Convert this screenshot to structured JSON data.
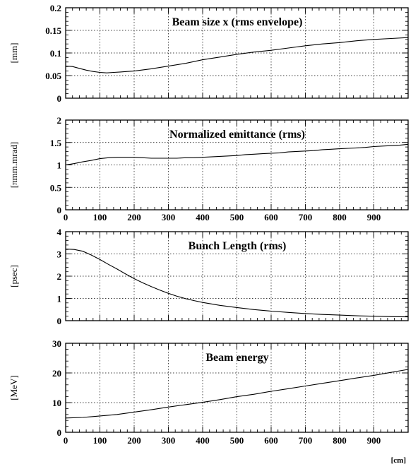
{
  "figure": {
    "x_unit_label": "[cm]"
  },
  "chart_data": [
    {
      "type": "line",
      "title": "Beam size x (rms envelope)",
      "ylabel": "[mm]",
      "xlabel": "",
      "xlim": [
        0,
        1000
      ],
      "ylim": [
        0,
        0.2
      ],
      "grid": true,
      "x_tick_values": [],
      "x_tick_labels": [],
      "y_tick_values": [
        0,
        0.05,
        0.1,
        0.15,
        0.2
      ],
      "y_tick_labels": [
        "0",
        "0.05",
        "0.1",
        "0.15",
        "0.2"
      ],
      "series": [
        {
          "x": [
            0,
            20,
            40,
            60,
            80,
            100,
            120,
            140,
            160,
            180,
            200,
            220,
            250,
            300,
            350,
            400,
            450,
            500,
            550,
            600,
            650,
            700,
            750,
            800,
            850,
            900,
            950,
            1000
          ],
          "y": [
            0.071,
            0.07,
            0.066,
            0.062,
            0.059,
            0.057,
            0.056,
            0.057,
            0.058,
            0.059,
            0.06,
            0.062,
            0.065,
            0.071,
            0.077,
            0.085,
            0.091,
            0.097,
            0.102,
            0.106,
            0.111,
            0.116,
            0.12,
            0.123,
            0.127,
            0.13,
            0.132,
            0.134
          ]
        }
      ]
    },
    {
      "type": "line",
      "title": "Normalized emittance (rms)",
      "ylabel": "[πmm.mrad]",
      "xlabel": "",
      "xlim": [
        0,
        1000
      ],
      "ylim": [
        0,
        2
      ],
      "grid": true,
      "x_tick_values": [
        0,
        100,
        200,
        300,
        400,
        500,
        600,
        700,
        800,
        900
      ],
      "x_tick_labels": [
        "0",
        "100",
        "200",
        "300",
        "400",
        "500",
        "600",
        "700",
        "800",
        "900"
      ],
      "y_tick_values": [
        0,
        0.5,
        1,
        1.5,
        2
      ],
      "y_tick_labels": [
        "0",
        "0.5",
        "1",
        "1.5",
        "2"
      ],
      "series": [
        {
          "x": [
            0,
            25,
            50,
            75,
            100,
            125,
            150,
            175,
            200,
            225,
            250,
            275,
            300,
            325,
            350,
            375,
            400,
            425,
            450,
            475,
            500,
            525,
            550,
            575,
            600,
            625,
            650,
            675,
            700,
            725,
            750,
            775,
            800,
            825,
            850,
            875,
            900,
            925,
            950,
            975,
            1000
          ],
          "y": [
            1.0,
            1.03,
            1.07,
            1.1,
            1.14,
            1.16,
            1.17,
            1.17,
            1.17,
            1.16,
            1.15,
            1.15,
            1.15,
            1.15,
            1.16,
            1.16,
            1.17,
            1.18,
            1.19,
            1.2,
            1.21,
            1.23,
            1.24,
            1.25,
            1.26,
            1.27,
            1.29,
            1.3,
            1.31,
            1.32,
            1.34,
            1.35,
            1.36,
            1.37,
            1.38,
            1.39,
            1.41,
            1.42,
            1.43,
            1.44,
            1.46
          ]
        }
      ]
    },
    {
      "type": "line",
      "title": "Bunch Length (rms)",
      "ylabel": "[psec]",
      "xlabel": "",
      "xlim": [
        0,
        1000
      ],
      "ylim": [
        0,
        4
      ],
      "grid": true,
      "x_tick_values": [],
      "x_tick_labels": [],
      "y_tick_values": [
        0,
        1,
        2,
        3,
        4
      ],
      "y_tick_labels": [
        "0",
        "1",
        "2",
        "3",
        "4"
      ],
      "series": [
        {
          "x": [
            0,
            25,
            50,
            75,
            100,
            125,
            150,
            175,
            200,
            225,
            250,
            275,
            300,
            325,
            350,
            375,
            400,
            450,
            500,
            550,
            600,
            650,
            700,
            750,
            800,
            850,
            900,
            950,
            1000
          ],
          "y": [
            3.22,
            3.2,
            3.12,
            2.95,
            2.75,
            2.53,
            2.32,
            2.1,
            1.89,
            1.7,
            1.53,
            1.37,
            1.23,
            1.1,
            0.99,
            0.9,
            0.82,
            0.69,
            0.59,
            0.5,
            0.43,
            0.37,
            0.32,
            0.28,
            0.25,
            0.22,
            0.2,
            0.18,
            0.17
          ]
        }
      ]
    },
    {
      "type": "line",
      "title": "Beam energy",
      "ylabel": "[MeV]",
      "xlabel": "",
      "xlim": [
        0,
        1000
      ],
      "ylim": [
        0,
        30
      ],
      "grid": true,
      "x_tick_values": [
        0,
        100,
        200,
        300,
        400,
        500,
        600,
        700,
        800,
        900
      ],
      "x_tick_labels": [
        "0",
        "100",
        "200",
        "300",
        "400",
        "500",
        "600",
        "700",
        "800",
        "900"
      ],
      "y_tick_values": [
        0,
        10,
        20,
        30
      ],
      "y_tick_labels": [
        "0",
        "10",
        "20",
        "30"
      ],
      "series": [
        {
          "x": [
            0,
            50,
            100,
            150,
            200,
            250,
            300,
            350,
            400,
            450,
            500,
            550,
            600,
            650,
            700,
            750,
            800,
            850,
            900,
            950,
            1000
          ],
          "y": [
            4.8,
            5.0,
            5.5,
            6.0,
            6.8,
            7.6,
            8.5,
            9.3,
            10.1,
            11.0,
            12.0,
            12.8,
            13.8,
            14.7,
            15.6,
            16.5,
            17.4,
            18.3,
            19.2,
            20.2,
            21.2
          ]
        }
      ]
    }
  ]
}
